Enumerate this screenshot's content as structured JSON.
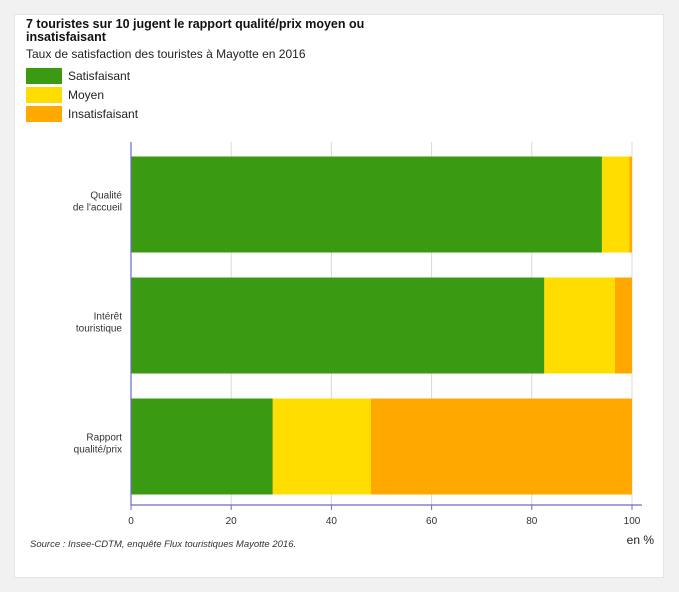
{
  "title": "7 touristes sur 10 jugent le rapport qualité/prix moyen ou insatisfaisant",
  "subtitle": "Taux de satisfaction des touristes à Mayotte en 2016",
  "source": "Source : Insee-CDTM, enquête Flux touristiques Mayotte 2016.",
  "chart_data": {
    "type": "bar",
    "orientation": "horizontal",
    "stacked": true,
    "title": "7 touristes sur 10 jugent le rapport qualité/prix moyen ou insatisfaisant",
    "subtitle": "Taux de satisfaction des touristes à Mayotte en 2016",
    "categories": [
      [
        "Qualité",
        "de l'accueil"
      ],
      [
        "Intérêt",
        "touristique"
      ],
      [
        "Rapport",
        "qualité/prix"
      ]
    ],
    "series": [
      {
        "name": "Satisfaisant",
        "color": "#3a9a12",
        "values": [
          94,
          82.5,
          28.3
        ]
      },
      {
        "name": "Moyen",
        "color": "#ffdd00",
        "values": [
          5.5,
          14.1,
          19.6
        ]
      },
      {
        "name": "Insatisfaisant",
        "color": "#ffa800",
        "values": [
          0.5,
          3.4,
          52.1
        ]
      }
    ],
    "xlim": [
      0,
      100
    ],
    "xticks": [
      0,
      20,
      40,
      60,
      80,
      100
    ],
    "xunit": "en %",
    "grid": true,
    "legend_position": "top-left"
  }
}
